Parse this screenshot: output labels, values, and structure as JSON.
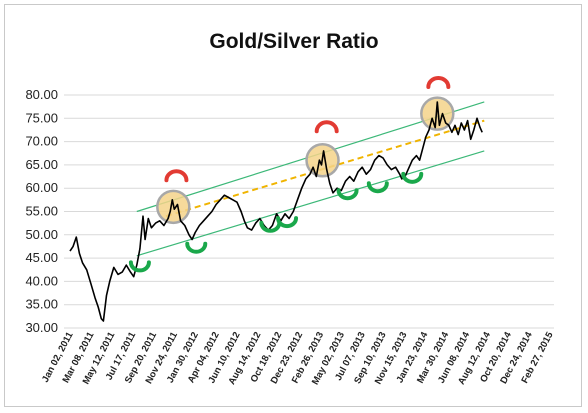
{
  "chart_data": {
    "type": "line",
    "title": "Gold/Silver Ratio",
    "xlabel": "",
    "ylabel": "",
    "ylim": [
      30,
      80
    ],
    "y_ticks": [
      "30.00",
      "35.00",
      "40.00",
      "45.00",
      "50.00",
      "55.00",
      "60.00",
      "65.00",
      "70.00",
      "75.00",
      "80.00"
    ],
    "x_tick_labels": [
      "Jan 02, 2011",
      "Mar 08, 2011",
      "May 12, 2011",
      "Jul 17, 2011",
      "Sep 20, 2011",
      "Nov 24, 2011",
      "Jan 30, 2012",
      "Apr 04, 2012",
      "Jun 10, 2012",
      "Aug 14, 2012",
      "Oct 18, 2012",
      "Dec 23, 2012",
      "Feb 26, 2013",
      "May 02, 2013",
      "Jul 07, 2013",
      "Sep 10, 2013",
      "Nov 15, 2013",
      "Jan 23, 2014",
      "Mar 30, 2014",
      "Jun 08, 2014",
      "Aug 12, 2014",
      "Oct 20, 2014",
      "Dec 24, 2014",
      "Feb 27, 2015"
    ],
    "grid": "horizontal",
    "legend": "none",
    "series": [
      {
        "color": "#000000",
        "points": [
          [
            0.0,
            46.5
          ],
          [
            0.15,
            47.5
          ],
          [
            0.3,
            49.5
          ],
          [
            0.45,
            46.0
          ],
          [
            0.6,
            44.0
          ],
          [
            0.8,
            42.5
          ],
          [
            1.0,
            39.5
          ],
          [
            1.2,
            36.5
          ],
          [
            1.35,
            34.5
          ],
          [
            1.5,
            32.0
          ],
          [
            1.6,
            31.5
          ],
          [
            1.75,
            37.0
          ],
          [
            1.9,
            40.0
          ],
          [
            2.1,
            43.0
          ],
          [
            2.3,
            41.5
          ],
          [
            2.5,
            42.0
          ],
          [
            2.7,
            43.5
          ],
          [
            2.9,
            42.0
          ],
          [
            3.05,
            41.0
          ],
          [
            3.2,
            43.5
          ],
          [
            3.35,
            47.0
          ],
          [
            3.5,
            54.0
          ],
          [
            3.6,
            49.0
          ],
          [
            3.75,
            53.5
          ],
          [
            3.9,
            51.5
          ],
          [
            4.1,
            52.5
          ],
          [
            4.3,
            53.0
          ],
          [
            4.5,
            52.0
          ],
          [
            4.7,
            53.5
          ],
          [
            4.8,
            55.0
          ],
          [
            4.9,
            57.5
          ],
          [
            5.0,
            55.5
          ],
          [
            5.15,
            56.5
          ],
          [
            5.3,
            53.0
          ],
          [
            5.5,
            52.0
          ],
          [
            5.7,
            50.0
          ],
          [
            5.85,
            49.0
          ],
          [
            6.0,
            50.5
          ],
          [
            6.2,
            52.0
          ],
          [
            6.4,
            53.0
          ],
          [
            6.6,
            54.0
          ],
          [
            6.8,
            55.0
          ],
          [
            7.0,
            56.5
          ],
          [
            7.2,
            57.5
          ],
          [
            7.4,
            58.5
          ],
          [
            7.6,
            58.0
          ],
          [
            7.8,
            57.5
          ],
          [
            8.0,
            57.0
          ],
          [
            8.2,
            55.0
          ],
          [
            8.35,
            53.0
          ],
          [
            8.5,
            51.5
          ],
          [
            8.7,
            51.0
          ],
          [
            8.9,
            52.5
          ],
          [
            9.1,
            53.5
          ],
          [
            9.3,
            52.0
          ],
          [
            9.5,
            51.0
          ],
          [
            9.7,
            52.0
          ],
          [
            9.9,
            54.5
          ],
          [
            10.1,
            53.0
          ],
          [
            10.3,
            54.5
          ],
          [
            10.5,
            53.5
          ],
          [
            10.7,
            55.0
          ],
          [
            10.9,
            57.5
          ],
          [
            11.1,
            60.0
          ],
          [
            11.3,
            62.0
          ],
          [
            11.5,
            63.0
          ],
          [
            11.65,
            64.5
          ],
          [
            11.8,
            62.5
          ],
          [
            11.95,
            66.0
          ],
          [
            12.05,
            65.0
          ],
          [
            12.15,
            68.0
          ],
          [
            12.3,
            64.0
          ],
          [
            12.45,
            61.0
          ],
          [
            12.6,
            59.0
          ],
          [
            12.8,
            60.0
          ],
          [
            13.0,
            59.5
          ],
          [
            13.2,
            61.5
          ],
          [
            13.4,
            62.5
          ],
          [
            13.6,
            61.5
          ],
          [
            13.8,
            63.5
          ],
          [
            14.0,
            64.5
          ],
          [
            14.2,
            63.0
          ],
          [
            14.4,
            64.0
          ],
          [
            14.6,
            66.0
          ],
          [
            14.8,
            67.0
          ],
          [
            15.0,
            66.5
          ],
          [
            15.2,
            65.0
          ],
          [
            15.4,
            64.0
          ],
          [
            15.6,
            64.5
          ],
          [
            15.8,
            63.0
          ],
          [
            15.9,
            62.0
          ],
          [
            16.05,
            62.5
          ],
          [
            16.2,
            64.0
          ],
          [
            16.4,
            66.0
          ],
          [
            16.6,
            67.0
          ],
          [
            16.75,
            66.0
          ],
          [
            16.9,
            68.5
          ],
          [
            17.05,
            71.0
          ],
          [
            17.2,
            72.5
          ],
          [
            17.35,
            75.0
          ],
          [
            17.5,
            73.0
          ],
          [
            17.6,
            78.5
          ],
          [
            17.7,
            73.5
          ],
          [
            17.85,
            76.0
          ],
          [
            18.0,
            74.0
          ],
          [
            18.15,
            73.5
          ],
          [
            18.3,
            72.0
          ],
          [
            18.45,
            73.5
          ],
          [
            18.6,
            71.5
          ],
          [
            18.75,
            74.0
          ],
          [
            18.9,
            72.5
          ],
          [
            19.05,
            74.5
          ],
          [
            19.2,
            70.5
          ],
          [
            19.35,
            72.5
          ],
          [
            19.5,
            75.0
          ],
          [
            19.65,
            73.0
          ],
          [
            19.75,
            72.0
          ]
        ]
      }
    ],
    "trend_lines": [
      {
        "color": "#3cb878",
        "style": "solid",
        "from": [
          3.2,
          55.0
        ],
        "to": [
          19.85,
          78.5
        ]
      },
      {
        "color": "#3cb878",
        "style": "solid",
        "from": [
          3.2,
          45.5
        ],
        "to": [
          19.85,
          68.0
        ]
      },
      {
        "color": "#f0b400",
        "style": "dashed",
        "from": [
          4.6,
          54.0
        ],
        "to": [
          19.85,
          74.5
        ]
      }
    ],
    "annotations": [
      {
        "shape": "circle",
        "fill": "#f5d48a",
        "stroke": "#a8a8a8",
        "at": [
          4.95,
          56.0
        ]
      },
      {
        "shape": "circle",
        "fill": "#f5d48a",
        "stroke": "#a8a8a8",
        "at": [
          12.1,
          66.0
        ]
      },
      {
        "shape": "circle",
        "fill": "#f5d48a",
        "stroke": "#a8a8a8",
        "at": [
          17.6,
          76.0
        ]
      },
      {
        "shape": "arc-top",
        "color": "#e23b33",
        "at": [
          5.1,
          63.0
        ]
      },
      {
        "shape": "arc-top",
        "color": "#e23b33",
        "at": [
          12.3,
          73.5
        ]
      },
      {
        "shape": "arc-top",
        "color": "#e23b33",
        "at": [
          17.65,
          83.0
        ]
      },
      {
        "shape": "arc-bottom",
        "color": "#1aa84b",
        "at": [
          3.35,
          43.0
        ]
      },
      {
        "shape": "arc-bottom",
        "color": "#1aa84b",
        "at": [
          6.05,
          47.0
        ]
      },
      {
        "shape": "arc-bottom",
        "color": "#1aa84b",
        "at": [
          9.6,
          51.5
        ]
      },
      {
        "shape": "arc-bottom",
        "color": "#1aa84b",
        "at": [
          10.4,
          52.5
        ]
      },
      {
        "shape": "arc-bottom",
        "color": "#1aa84b",
        "at": [
          13.3,
          58.5
        ]
      },
      {
        "shape": "arc-bottom",
        "color": "#1aa84b",
        "at": [
          14.75,
          60.0
        ]
      },
      {
        "shape": "arc-bottom",
        "color": "#1aa84b",
        "at": [
          16.4,
          62.0
        ]
      }
    ]
  }
}
